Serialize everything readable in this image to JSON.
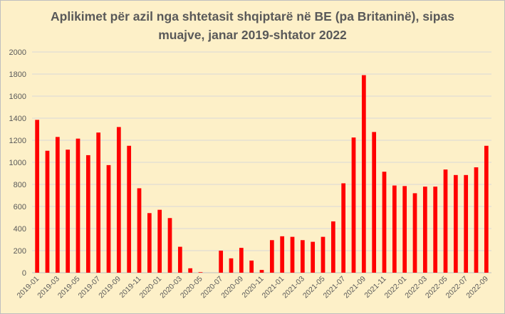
{
  "chart_data": {
    "type": "bar",
    "title": "Aplikimet për azil nga shtetasit shqiptarë në BE (pa Britaninë), sipas muajve, janar 2019-shtator 2022",
    "title_lines": [
      "Aplikimet për azil nga shtetasit shqiptarë në BE (pa Britaninë), sipas",
      "muajve, janar 2019-shtator 2022"
    ],
    "xlabel": "",
    "ylabel": "",
    "ylim": [
      0,
      2000
    ],
    "yticks": [
      0,
      200,
      400,
      600,
      800,
      1000,
      1200,
      1400,
      1600,
      1800,
      2000
    ],
    "grid": true,
    "legend": "none",
    "colors": {
      "bar": "#ff0000",
      "background": "#fdf0c8",
      "grid": "#d9d9d9",
      "text": "#595959"
    },
    "categories": [
      "2019-01",
      "2019-02",
      "2019-03",
      "2019-04",
      "2019-05",
      "2019-06",
      "2019-07",
      "2019-08",
      "2019-09",
      "2019-10",
      "2019-11",
      "2019-12",
      "2020-01",
      "2020-02",
      "2020-03",
      "2020-04",
      "2020-05",
      "2020-06",
      "2020-07",
      "2020-08",
      "2020-09",
      "2020-10",
      "2020-11",
      "2020-12",
      "2021-01",
      "2021-02",
      "2021-03",
      "2021-04",
      "2021-05",
      "2021-06",
      "2021-07",
      "2021-08",
      "2021-09",
      "2021-10",
      "2021-11",
      "2021-12",
      "2022-01",
      "2022-02",
      "2022-03",
      "2022-04",
      "2022-05",
      "2022-06",
      "2022-07",
      "2022-08",
      "2022-09"
    ],
    "tick_labels": [
      "2019-01",
      "2019-03",
      "2019-05",
      "2019-07",
      "2019-09",
      "2019-11",
      "2020-01",
      "2020-03",
      "2020-05",
      "2020-07",
      "2020-09",
      "2020-11",
      "2021-01",
      "2021-03",
      "2021-05",
      "2021-07",
      "2021-09",
      "2021-11",
      "2022-01",
      "2022-03",
      "2022-05",
      "2022-07",
      "2022-09"
    ],
    "values": [
      1385,
      1105,
      1230,
      1115,
      1215,
      1065,
      1270,
      975,
      1320,
      1150,
      765,
      540,
      570,
      495,
      235,
      40,
      5,
      0,
      200,
      130,
      225,
      110,
      25,
      295,
      330,
      325,
      295,
      280,
      325,
      465,
      810,
      1225,
      1790,
      1275,
      915,
      790,
      785,
      720,
      780,
      780,
      935,
      885,
      885,
      955,
      1150
    ]
  }
}
